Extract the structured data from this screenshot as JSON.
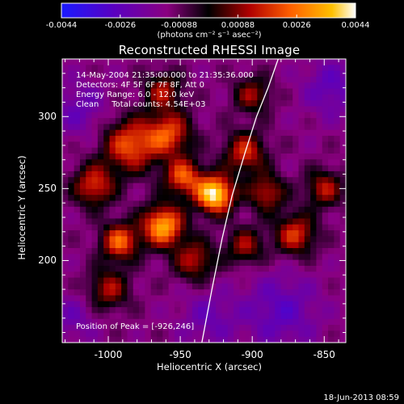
{
  "colorbar": {
    "ticks": [
      "-0.0044",
      "-0.0026",
      "-0.00088",
      "0.00088",
      "0.0026",
      "0.0044"
    ],
    "units": "(photons cm⁻² s⁻¹ asec⁻²)",
    "colors": [
      "#1a1aff",
      "#5a00c0",
      "#8a0080",
      "#000000",
      "#b00000",
      "#ff6000",
      "#ffc000",
      "#ffffff"
    ]
  },
  "info": {
    "line1": "14-May-2004 21:35:00.000 to 21:35:36.000",
    "line2": "Detectors: 4F 5F 6F 7F 8F, Att 0",
    "line3": "Energy Range: 6.0 - 12.0 keV",
    "line4": "Clean     Total counts: 4.54E+03",
    "peak": "Position of Peak = [-926,246]"
  },
  "footer": "18-Jun-2013 08:59",
  "chart_data": {
    "type": "heatmap",
    "title": "Reconstructed RHESSI Image",
    "xlabel": "Heliocentric X (arcsec)",
    "ylabel": "Heliocentric Y (arcsec)",
    "xlim": [
      -1032,
      -835
    ],
    "ylim": [
      143,
      340
    ],
    "xticks": [
      -1000,
      -950,
      -900,
      -850
    ],
    "xtick_labels": [
      "-1000",
      "-950",
      "-900",
      "-850"
    ],
    "yticks": [
      200,
      250,
      300
    ],
    "ytick_labels": [
      "200",
      "250",
      "300"
    ],
    "clim": [
      -0.0044,
      0.0044
    ],
    "peak": [
      -926,
      246
    ],
    "limb_line": [
      [
        -935,
        143
      ],
      [
        -928,
        180
      ],
      [
        -921,
        215
      ],
      [
        -914,
        245
      ],
      [
        -905,
        275
      ],
      [
        -897,
        300
      ],
      [
        -889,
        320
      ],
      [
        -882,
        340
      ]
    ],
    "sources": [
      {
        "x": -926,
        "y": 246,
        "amp": 0.0044,
        "sigma": 9
      },
      {
        "x": -962,
        "y": 224,
        "amp": 0.0034,
        "sigma": 10
      },
      {
        "x": -992,
        "y": 213,
        "amp": 0.0024,
        "sigma": 9
      },
      {
        "x": -985,
        "y": 280,
        "amp": 0.0022,
        "sigma": 13
      },
      {
        "x": -1010,
        "y": 252,
        "amp": 0.0018,
        "sigma": 10
      },
      {
        "x": -958,
        "y": 288,
        "amp": 0.002,
        "sigma": 11
      },
      {
        "x": -948,
        "y": 258,
        "amp": 0.0022,
        "sigma": 9
      },
      {
        "x": -905,
        "y": 275,
        "amp": 0.0017,
        "sigma": 10
      },
      {
        "x": -870,
        "y": 218,
        "amp": 0.0018,
        "sigma": 10
      },
      {
        "x": -890,
        "y": 247,
        "amp": 0.0014,
        "sigma": 9
      },
      {
        "x": -850,
        "y": 250,
        "amp": 0.0013,
        "sigma": 9
      },
      {
        "x": -940,
        "y": 200,
        "amp": 0.0013,
        "sigma": 10
      },
      {
        "x": -1000,
        "y": 180,
        "amp": 0.0012,
        "sigma": 10
      },
      {
        "x": -962,
        "y": 318,
        "amp": 0.0012,
        "sigma": 9
      },
      {
        "x": -900,
        "y": 315,
        "amp": 0.001,
        "sigma": 9
      },
      {
        "x": -905,
        "y": 210,
        "amp": 0.0011,
        "sigma": 9
      },
      {
        "x": -1020,
        "y": 305,
        "amp": -0.0012,
        "sigma": 14
      },
      {
        "x": -880,
        "y": 165,
        "amp": -0.0015,
        "sigma": 18
      },
      {
        "x": -845,
        "y": 320,
        "amp": -0.0014,
        "sigma": 14
      },
      {
        "x": -930,
        "y": 160,
        "amp": -0.0011,
        "sigma": 14
      },
      {
        "x": -1025,
        "y": 160,
        "amp": -0.001,
        "sigma": 12
      }
    ]
  }
}
